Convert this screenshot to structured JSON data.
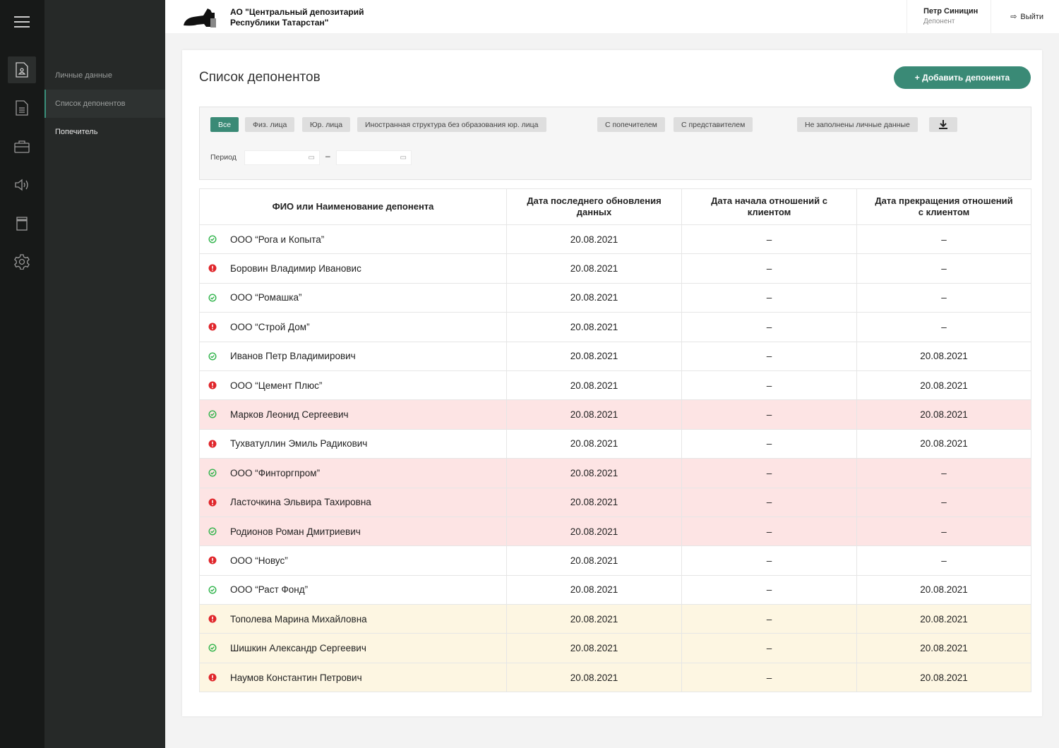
{
  "brand": {
    "line1": "АО \"Центральный депозитарий",
    "line2": "Республики Татарстан\""
  },
  "user": {
    "name": "Петр Синицин",
    "role": "Депонент"
  },
  "logout_label": "Выйти",
  "submenu": [
    "Личные данные",
    "Список депонентов",
    "Попечитель"
  ],
  "page": {
    "title": "Список депонентов",
    "add_label": "+ Добавить депонента"
  },
  "filters": {
    "chips": [
      "Все",
      "Физ. лица",
      "Юр. лица",
      "Иностранная структура без образования юр. лица",
      "С попечителем",
      "С представителем",
      "Не заполнены личные данные"
    ],
    "period_label": "Период",
    "dash": "–"
  },
  "table": {
    "headers": [
      "ФИО или Наименование депонента",
      "Дата последнего обновления данных",
      "Дата начала отношений с клиентом",
      "Дата прекращения отношений с клиентом"
    ],
    "rows": [
      {
        "status": "ok",
        "hl": "",
        "name": "ООО “Рога и Копыта”",
        "updated": "20.08.2021",
        "start": "–",
        "end": "–"
      },
      {
        "status": "err",
        "hl": "",
        "name": "Боровин Владимир Ивановис",
        "updated": "20.08.2021",
        "start": "–",
        "end": "–"
      },
      {
        "status": "ok",
        "hl": "",
        "name": "ООО “Ромашка”",
        "updated": "20.08.2021",
        "start": "–",
        "end": "–"
      },
      {
        "status": "err",
        "hl": "",
        "name": "ООО “Строй Дом”",
        "updated": "20.08.2021",
        "start": "–",
        "end": "–"
      },
      {
        "status": "ok",
        "hl": "",
        "name": "Иванов Петр Владимирович",
        "updated": "20.08.2021",
        "start": "–",
        "end": "20.08.2021"
      },
      {
        "status": "err",
        "hl": "",
        "name": "ООО “Цемент Плюс”",
        "updated": "20.08.2021",
        "start": "–",
        "end": "20.08.2021"
      },
      {
        "status": "ok",
        "hl": "pink",
        "name": "Марков Леонид Сергеевич",
        "updated": "20.08.2021",
        "start": "–",
        "end": "20.08.2021"
      },
      {
        "status": "err",
        "hl": "",
        "name": "Тухватуллин Эмиль Радикович",
        "updated": "20.08.2021",
        "start": "–",
        "end": "20.08.2021"
      },
      {
        "status": "ok",
        "hl": "pink",
        "name": "ООО “Финторгпром”",
        "updated": "20.08.2021",
        "start": "–",
        "end": "–"
      },
      {
        "status": "err",
        "hl": "pink",
        "name": "Ласточкина Эльвира Тахировна",
        "updated": "20.08.2021",
        "start": "–",
        "end": "–"
      },
      {
        "status": "ok",
        "hl": "pink",
        "name": "Родионов Роман Дмитриевич",
        "updated": "20.08.2021",
        "start": "–",
        "end": "–"
      },
      {
        "status": "err",
        "hl": "",
        "name": "ООО “Новус”",
        "updated": "20.08.2021",
        "start": "–",
        "end": "–"
      },
      {
        "status": "ok",
        "hl": "",
        "name": "ООО “Раст Фонд”",
        "updated": "20.08.2021",
        "start": "–",
        "end": "20.08.2021"
      },
      {
        "status": "err",
        "hl": "yellow",
        "name": "Тополева Марина Михайловна",
        "updated": "20.08.2021",
        "start": "–",
        "end": "20.08.2021"
      },
      {
        "status": "ok",
        "hl": "yellow",
        "name": "Шишкин Александр Сергеевич",
        "updated": "20.08.2021",
        "start": "–",
        "end": "20.08.2021"
      },
      {
        "status": "err",
        "hl": "yellow",
        "name": "Наумов Константин Петрович",
        "updated": "20.08.2021",
        "start": "–",
        "end": "20.08.2021"
      }
    ]
  },
  "colors": {
    "accent": "#3a8a76",
    "ok": "#2fb34a",
    "err": "#e0262b"
  }
}
